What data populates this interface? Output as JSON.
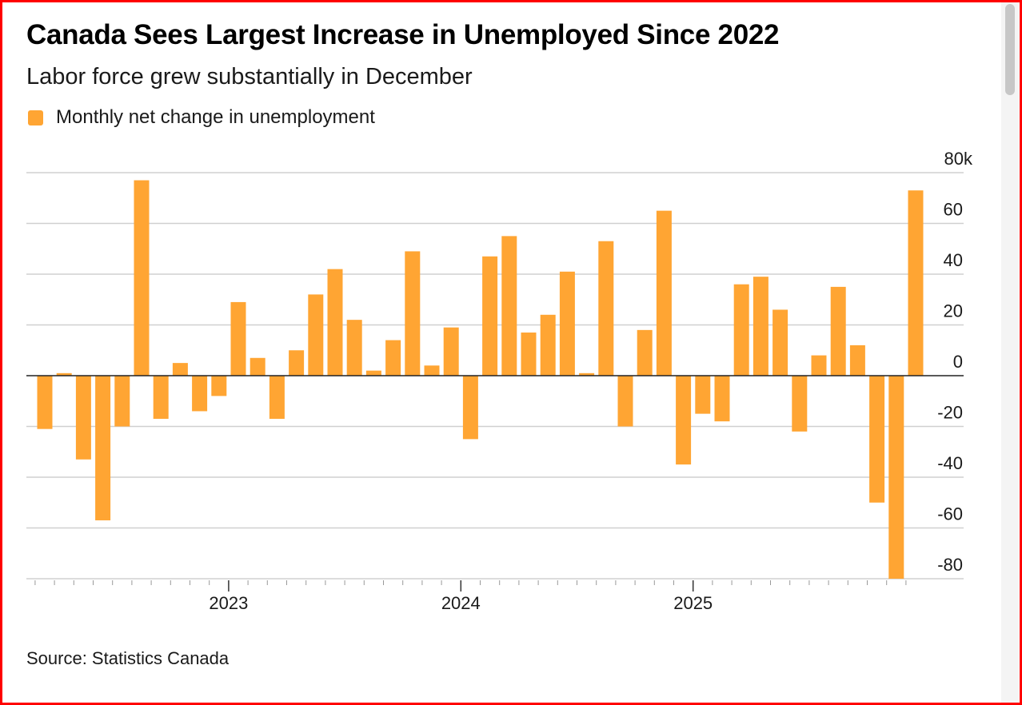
{
  "title": "Canada Sees Largest Increase in Unemployed Since 2022",
  "subtitle": "Labor force grew substantially in December",
  "source": "Source: Statistics Canada",
  "colors": {
    "bar": "#FFA533",
    "gridline": "#d0d0d0",
    "zero_line": "#222222",
    "frame": "#ff0000"
  },
  "chart_data": {
    "type": "bar",
    "title": "Canada Sees Largest Increase in Unemployed Since 2022",
    "subtitle": "Labor force grew substantially in December",
    "legend": [
      {
        "label": "Monthly net change in unemployment",
        "color": "#FFA533"
      }
    ],
    "legend_position": "top-left",
    "y_axis_position": "right",
    "ylim": [
      -80,
      80
    ],
    "y_ticks": [
      80,
      60,
      40,
      20,
      0,
      -20,
      -40,
      -60,
      -80
    ],
    "y_tick_labels": [
      "80k",
      "60",
      "40",
      "20",
      "0",
      "-20",
      "-40",
      "-60",
      "-80"
    ],
    "x_tick_labels": [
      {
        "label": "2023",
        "index": 10
      },
      {
        "label": "2024",
        "index": 22
      },
      {
        "label": "2025",
        "index": 34
      }
    ],
    "series": [
      {
        "name": "Monthly net change in unemployment",
        "values": [
          -21,
          1,
          -33,
          -57,
          -20,
          77,
          -17,
          5,
          -14,
          -8,
          29,
          7,
          -17,
          10,
          32,
          42,
          22,
          2,
          14,
          49,
          4,
          19,
          -25,
          47,
          55,
          17,
          24,
          41,
          1,
          53,
          -20,
          18,
          65,
          -35,
          -15,
          -18,
          36,
          39,
          26,
          -22,
          8,
          35,
          12,
          -50,
          -80,
          73
        ]
      }
    ],
    "xlabel": "",
    "ylabel": "",
    "grid": true
  }
}
